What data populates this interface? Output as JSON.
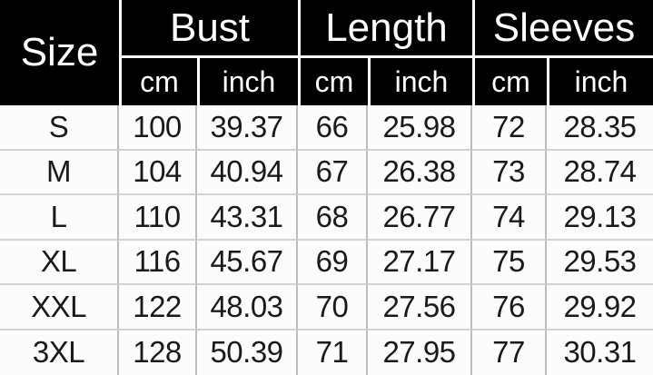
{
  "chart_data": {
    "type": "table",
    "header": {
      "size": "Size",
      "groups": [
        "Bust",
        "Length",
        "Sleeves"
      ],
      "units": [
        "cm",
        "inch",
        "cm",
        "inch",
        "cm",
        "inch"
      ]
    },
    "rows": [
      {
        "size": "S",
        "values": [
          "100",
          "39.37",
          "66",
          "25.98",
          "72",
          "28.35"
        ]
      },
      {
        "size": "M",
        "values": [
          "104",
          "40.94",
          "67",
          "26.38",
          "73",
          "28.74"
        ]
      },
      {
        "size": "L",
        "values": [
          "110",
          "43.31",
          "68",
          "26.77",
          "74",
          "29.13"
        ]
      },
      {
        "size": "XL",
        "values": [
          "116",
          "45.67",
          "69",
          "27.17",
          "75",
          "29.53"
        ]
      },
      {
        "size": "XXL",
        "values": [
          "122",
          "48.03",
          "70",
          "27.56",
          "76",
          "29.92"
        ]
      },
      {
        "size": "3XL",
        "values": [
          "128",
          "50.39",
          "71",
          "27.95",
          "77",
          "30.31"
        ]
      }
    ],
    "layout_hints": {
      "grouped_columns": true,
      "units_per_group": 2,
      "gridlines": "on"
    }
  },
  "colors": {
    "header_bg": "#000000",
    "header_text": "#ffffff",
    "body_bg": "#fcfcfc",
    "body_text": "#1a1a1a",
    "gridline_vertical": "#bdbdbd",
    "gridline_horizontal": "#d2d2d2",
    "header_separator": "#ffffff"
  }
}
